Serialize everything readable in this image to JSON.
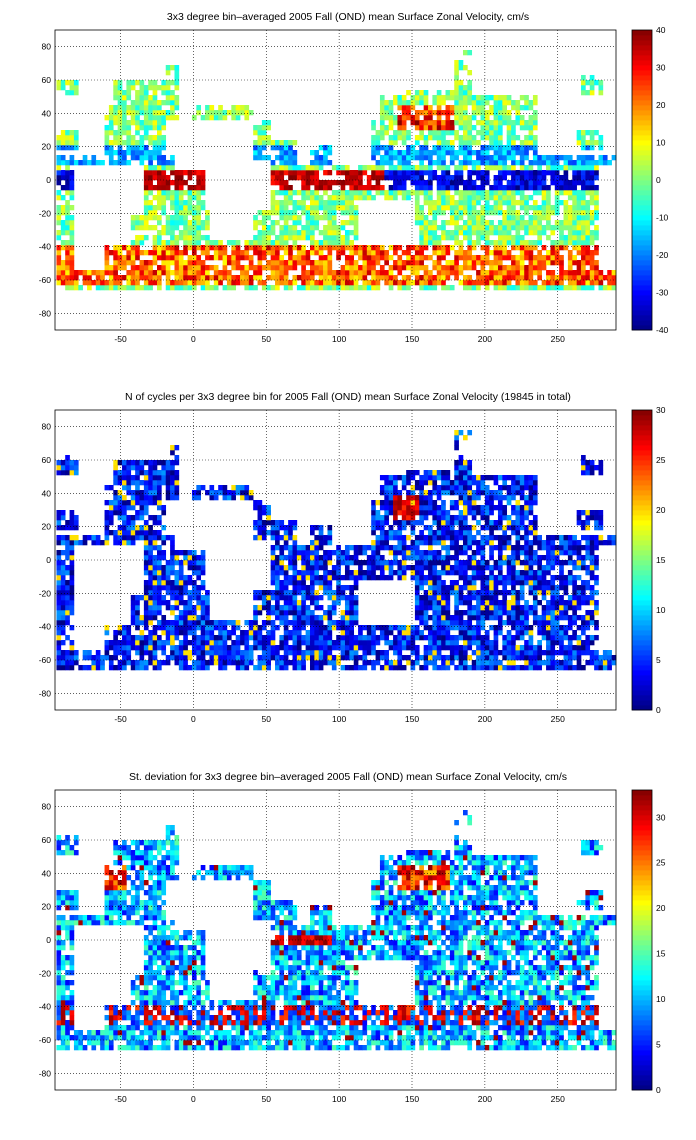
{
  "chart_data": [
    {
      "type": "heatmap",
      "title": "3x3 degree bin–averaged 2005 Fall (OND) mean Surface Zonal Velocity, cm/s",
      "xlabel": "",
      "ylabel": "",
      "xlim": [
        -95,
        290
      ],
      "ylim": [
        -90,
        90
      ],
      "x_ticks": [
        -50,
        0,
        50,
        100,
        150,
        200,
        250
      ],
      "y_ticks": [
        80,
        60,
        40,
        20,
        0,
        -20,
        -40,
        -60,
        -80
      ],
      "grid": true,
      "colorbar": {
        "range": [
          -40,
          40
        ],
        "ticks": [
          40,
          30,
          20,
          10,
          0,
          -10,
          -20,
          -30,
          -40
        ],
        "colormap": "jet"
      },
      "bin_size_deg": 3,
      "values_note": "",
      "values": "dense 3x3 degree grid of mean zonal velocity over global ocean; strong eastward (red, ~30-40) along 0-5N Atlantic/Indian and Southern Ocean 40-60S, westward (blue, ~-20 to -40) along equatorial Pacific"
    },
    {
      "type": "heatmap",
      "title": "N of cycles per 3x3 degree bin for 2005 Fall (OND) mean Surface Zonal Velocity (19845 in total)",
      "xlabel": "",
      "ylabel": "",
      "xlim": [
        -95,
        290
      ],
      "ylim": [
        -90,
        90
      ],
      "x_ticks": [
        -50,
        0,
        50,
        100,
        150,
        200,
        250
      ],
      "y_ticks": [
        80,
        60,
        40,
        20,
        0,
        -20,
        -40,
        -60,
        -80
      ],
      "grid": true,
      "colorbar": {
        "range": [
          0,
          30
        ],
        "ticks": [
          30,
          25,
          20,
          15,
          10,
          5,
          0
        ],
        "colormap": "jet"
      },
      "total_cycles": 19845,
      "values": "mostly low counts (0-8, blue) everywhere; high counts (25-30, dark red) in Japan/Kuroshio region near 145E 35N"
    },
    {
      "type": "heatmap",
      "title": "St. deviation for 3x3 degree bin–averaged 2005 Fall (OND) mean Surface Zonal Velocity, cm/s",
      "xlabel": "",
      "ylabel": "",
      "xlim": [
        -95,
        290
      ],
      "ylim": [
        -90,
        90
      ],
      "x_ticks": [
        -50,
        0,
        50,
        100,
        150,
        200,
        250
      ],
      "y_ticks": [
        80,
        60,
        40,
        20,
        0,
        -20,
        -40,
        -60,
        -80
      ],
      "grid": true,
      "colorbar": {
        "range": [
          0,
          33
        ],
        "ticks": [
          30,
          25,
          20,
          15,
          10,
          5,
          0
        ],
        "colormap": "jet"
      },
      "values": "std dev mostly 5-15 (cyan/blue); high (25-33, dark red) along equator Indian Ocean, Gulf Stream, Kuroshio and Southern Ocean 40-50S"
    }
  ]
}
